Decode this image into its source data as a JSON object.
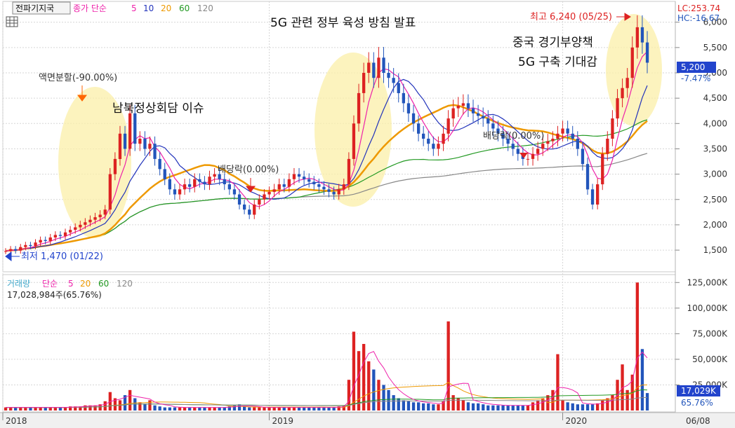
{
  "window": {
    "tab_label": "전파기지국",
    "price_legend": {
      "prefix": "종가 단순",
      "periods": [
        "5",
        "10",
        "20",
        "60",
        "120"
      ]
    },
    "volume_legend": {
      "prefix1": "거래량",
      "prefix2": "단순",
      "periods": [
        "5",
        "20",
        "60",
        "120"
      ]
    },
    "volume_info": "17,028,984주(65.76%)",
    "corner_info": {
      "lc": "LC:253.74",
      "hc": "HC:-16.67"
    },
    "current_price_tag": "5,200",
    "current_change": "-7.47%",
    "current_volume_tag": "17,029K",
    "current_volume_pct": "65.76%",
    "date_label": "06/08"
  },
  "colors": {
    "up": "#dd2222",
    "down": "#2255bb",
    "ma5": "#ee22aa",
    "ma10": "#2233bb",
    "ma20": "#ee9900",
    "ma60": "#229922",
    "ma120": "#888888",
    "highlight": "#fbefa8",
    "accent_orange": "#ff6600"
  },
  "annotations": [
    {
      "name": "annot-split",
      "text": "액면분할(-90.00%)"
    },
    {
      "name": "annot-inter-korea",
      "text": "남북정상회담 이슈"
    },
    {
      "name": "annot-5g-policy",
      "text": "5G 관련 정부 육성 방침 발표"
    },
    {
      "name": "annot-dividend-1",
      "text": "배당락(0.00%)"
    },
    {
      "name": "annot-dividend-2",
      "text": "배당락(0.00%)"
    },
    {
      "name": "annot-china-stimulus",
      "text": "중국 경기부양책"
    },
    {
      "name": "annot-5g-build",
      "text": "5G 구축 기대감"
    },
    {
      "name": "annot-high",
      "text": "최고 6,240 (05/25)"
    },
    {
      "name": "annot-low",
      "text": "최저 1,470 (01/22)"
    }
  ],
  "chart_data": [
    {
      "type": "candlestick",
      "title": "",
      "ylim": [
        1100,
        6300
      ],
      "y_ticks": [
        "1,500",
        "2,000",
        "2,500",
        "3,000",
        "3,500",
        "4,000",
        "4,500",
        "5,000",
        "5,500",
        "6,000"
      ],
      "x_ticks": [
        "2018",
        "2019",
        "2020"
      ],
      "grid": true,
      "high": {
        "value": 6240,
        "date": "05/25"
      },
      "low": {
        "value": 1470,
        "date": "01/22"
      },
      "series_close": [
        1480,
        1520,
        1490,
        1560,
        1600,
        1580,
        1650,
        1700,
        1680,
        1750,
        1800,
        1780,
        1850,
        1900,
        1950,
        2000,
        2050,
        2100,
        2150,
        2200,
        2300,
        3000,
        3300,
        3800,
        3500,
        4200,
        3600,
        3700,
        3500,
        3600,
        3300,
        3100,
        2900,
        2700,
        2600,
        2700,
        2800,
        2750,
        2900,
        2850,
        2800,
        2950,
        3000,
        2900,
        2800,
        2700,
        2600,
        2400,
        2300,
        2200,
        2400,
        2500,
        2600,
        2650,
        2700,
        2800,
        2750,
        2900,
        3000,
        2950,
        2900,
        2850,
        2800,
        2750,
        2700,
        2650,
        2600,
        2700,
        2800,
        3300,
        4000,
        4600,
        5000,
        5200,
        4900,
        5300,
        5000,
        4900,
        4800,
        4600,
        4400,
        4200,
        4000,
        3800,
        3700,
        3600,
        3500,
        3600,
        3800,
        4100,
        4300,
        4350,
        4400,
        4300,
        4200,
        4150,
        4100,
        4000,
        3900,
        3800,
        3700,
        3600,
        3500,
        3400,
        3300,
        3300,
        3400,
        3500,
        3600,
        3650,
        3700,
        3800,
        3900,
        3800,
        3700,
        3500,
        3200,
        2700,
        2400,
        2800,
        3400,
        3700,
        4100,
        4500,
        4700,
        4900,
        5500,
        5900,
        5600,
        5200
      ],
      "moving_averages": [
        "MA5",
        "MA10",
        "MA20",
        "MA60",
        "MA120"
      ]
    },
    {
      "type": "bar",
      "title": "",
      "ylim": [
        0,
        130000
      ],
      "y_ticks": [
        "25,000K",
        "50,000K",
        "75,000K",
        "100,000K",
        "125,000K"
      ],
      "values_k": [
        3000,
        3000,
        3000,
        3000,
        3000,
        3000,
        3000,
        3000,
        3000,
        3000,
        3000,
        3000,
        3000,
        4000,
        4000,
        4000,
        5000,
        5000,
        5000,
        6000,
        9000,
        18000,
        12000,
        10000,
        15000,
        20000,
        12000,
        8000,
        6000,
        10000,
        5000,
        4000,
        3000,
        3000,
        3000,
        3000,
        3000,
        3000,
        3000,
        3000,
        3000,
        3000,
        3000,
        3000,
        3000,
        4000,
        5000,
        6000,
        4000,
        3000,
        3000,
        3000,
        3000,
        3000,
        3000,
        3000,
        3000,
        3000,
        3000,
        3000,
        3000,
        3000,
        3000,
        3000,
        3000,
        3000,
        3000,
        4000,
        5000,
        30000,
        77000,
        58000,
        65000,
        48000,
        40000,
        30000,
        25000,
        20000,
        15000,
        12000,
        10000,
        9000,
        8000,
        8000,
        7000,
        7000,
        6000,
        6000,
        9000,
        87000,
        15000,
        12000,
        10000,
        8000,
        7000,
        7000,
        6000,
        5000,
        5000,
        5000,
        5000,
        5000,
        5000,
        5000,
        5000,
        5000,
        8000,
        10000,
        12000,
        15000,
        20000,
        55000,
        10000,
        8000,
        7000,
        6000,
        6000,
        6000,
        6000,
        7000,
        10000,
        12000,
        15000,
        30000,
        45000,
        20000,
        35000,
        125000,
        60000,
        17029
      ]
    }
  ]
}
